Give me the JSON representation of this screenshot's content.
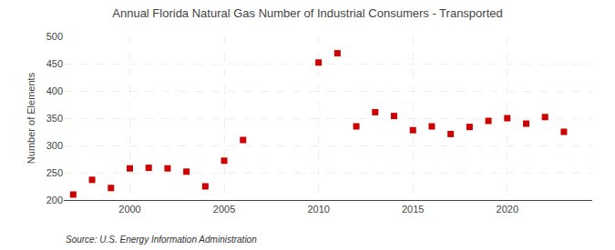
{
  "chart_data": {
    "type": "scatter",
    "title": "Annual Florida Natural Gas Number of Industrial Consumers - Transported",
    "ylabel": "Number of Elements",
    "source": "Source: U.S. Energy Information Administration",
    "x": [
      1997,
      1998,
      1999,
      2000,
      2001,
      2002,
      2003,
      2004,
      2005,
      2006,
      2010,
      2011,
      2012,
      2013,
      2014,
      2015,
      2016,
      2017,
      2018,
      2019,
      2020,
      2021,
      2022,
      2023
    ],
    "values": [
      210,
      237,
      222,
      258,
      259,
      258,
      252,
      225,
      272,
      310,
      452,
      469,
      335,
      361,
      354,
      328,
      335,
      321,
      334,
      345,
      350,
      340,
      352,
      325
    ],
    "color": "#cc0000",
    "marker": "square",
    "xlim": [
      1996.5,
      2024.5
    ],
    "xticks": [
      2000,
      2005,
      2010,
      2015,
      2020
    ],
    "ylim": [
      200,
      500
    ],
    "yticks": [
      200,
      250,
      300,
      350,
      400,
      450,
      500
    ],
    "grid": true
  }
}
